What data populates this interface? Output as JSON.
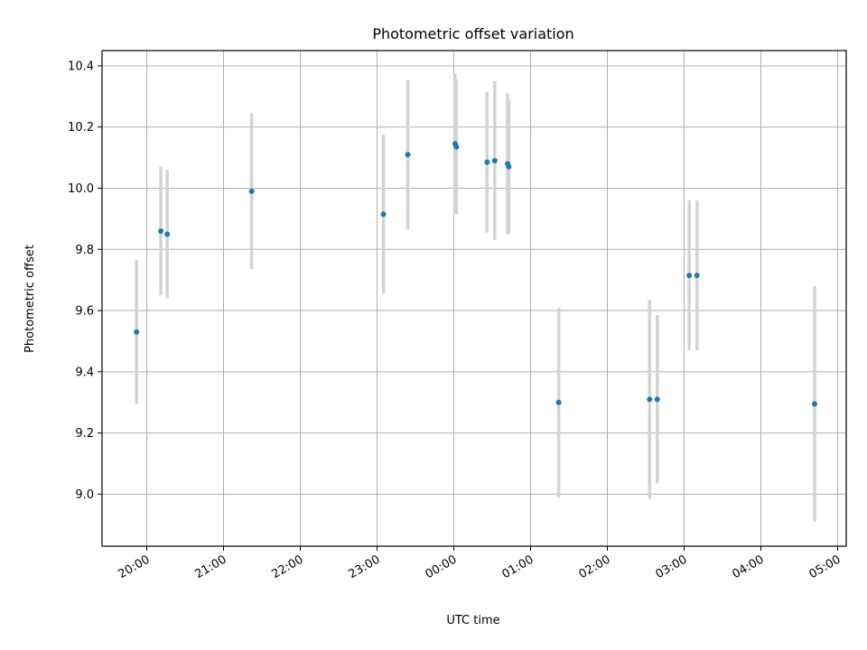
{
  "chart_data": {
    "type": "scatter",
    "title": "Photometric offset variation",
    "xlabel": "UTC time",
    "ylabel": "Photometric offset",
    "x_axis_type": "time",
    "x_tick_labels": [
      "20:00",
      "21:00",
      "22:00",
      "23:00",
      "00:00",
      "01:00",
      "02:00",
      "03:00",
      "04:00",
      "05:00"
    ],
    "y_ticks": [
      9.0,
      9.2,
      9.4,
      9.6,
      9.8,
      10.0,
      10.2,
      10.4
    ],
    "y_tick_labels": [
      "9.0",
      "9.2",
      "9.4",
      "9.6",
      "9.8",
      "10.0",
      "10.2",
      "10.4"
    ],
    "ylim": [
      8.83,
      10.45
    ],
    "grid": true,
    "marker_color": "#1f77b4",
    "errorbar_color": "#d3d3d3",
    "points": [
      {
        "time": "19:52",
        "y": 9.53,
        "err": 0.235
      },
      {
        "time": "20:11",
        "y": 9.86,
        "err": 0.21
      },
      {
        "time": "20:16",
        "y": 9.85,
        "err": 0.21
      },
      {
        "time": "21:22",
        "y": 9.99,
        "err": 0.255
      },
      {
        "time": "23:05",
        "y": 9.915,
        "err": 0.26
      },
      {
        "time": "23:24",
        "y": 10.11,
        "err": 0.245
      },
      {
        "time": "00:01",
        "y": 10.145,
        "err": 0.23
      },
      {
        "time": "00:02",
        "y": 10.135,
        "err": 0.22
      },
      {
        "time": "00:26",
        "y": 10.085,
        "err": 0.23
      },
      {
        "time": "00:32",
        "y": 10.09,
        "err": 0.26
      },
      {
        "time": "00:42",
        "y": 10.08,
        "err": 0.23
      },
      {
        "time": "00:43",
        "y": 10.07,
        "err": 0.22
      },
      {
        "time": "01:22",
        "y": 9.3,
        "err": 0.31
      },
      {
        "time": "02:33",
        "y": 9.31,
        "err": 0.325
      },
      {
        "time": "02:39",
        "y": 9.31,
        "err": 0.275
      },
      {
        "time": "03:04",
        "y": 9.715,
        "err": 0.245
      },
      {
        "time": "03:10",
        "y": 9.715,
        "err": 0.245
      },
      {
        "time": "04:42",
        "y": 9.295,
        "err": 0.385
      }
    ]
  }
}
